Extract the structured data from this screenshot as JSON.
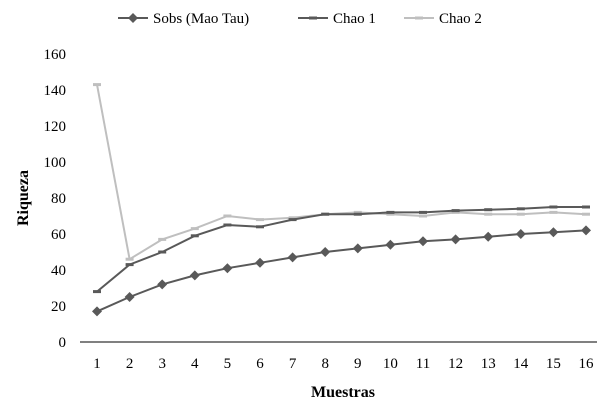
{
  "chart_data": {
    "type": "line",
    "xlabel": "Muestras",
    "ylabel": "Riqueza",
    "ylim": [
      0,
      160
    ],
    "yticks": [
      0,
      20,
      40,
      60,
      80,
      100,
      120,
      140,
      160
    ],
    "x": [
      1,
      2,
      3,
      4,
      5,
      6,
      7,
      8,
      9,
      10,
      11,
      12,
      13,
      14,
      15,
      16
    ],
    "grid": false,
    "legend_position": "top",
    "series": [
      {
        "name": "Sobs (Mao Tau)",
        "color": "#595959",
        "marker": "diamond",
        "values": [
          17,
          25,
          32,
          37,
          41,
          44,
          47,
          50,
          52,
          54,
          56,
          57,
          58.5,
          60,
          61,
          62
        ]
      },
      {
        "name": "Chao 1",
        "color": "#595959",
        "marker": "dash",
        "values": [
          28,
          43,
          50,
          59,
          65,
          64,
          68,
          71,
          71,
          72,
          72,
          73,
          73.5,
          74,
          75,
          75
        ]
      },
      {
        "name": "Chao 2",
        "color": "#bfbfbf",
        "marker": "dash",
        "values": [
          143,
          46,
          57,
          63,
          70,
          68,
          69,
          71,
          72,
          71,
          70,
          72,
          71,
          71,
          72,
          71
        ]
      }
    ]
  }
}
